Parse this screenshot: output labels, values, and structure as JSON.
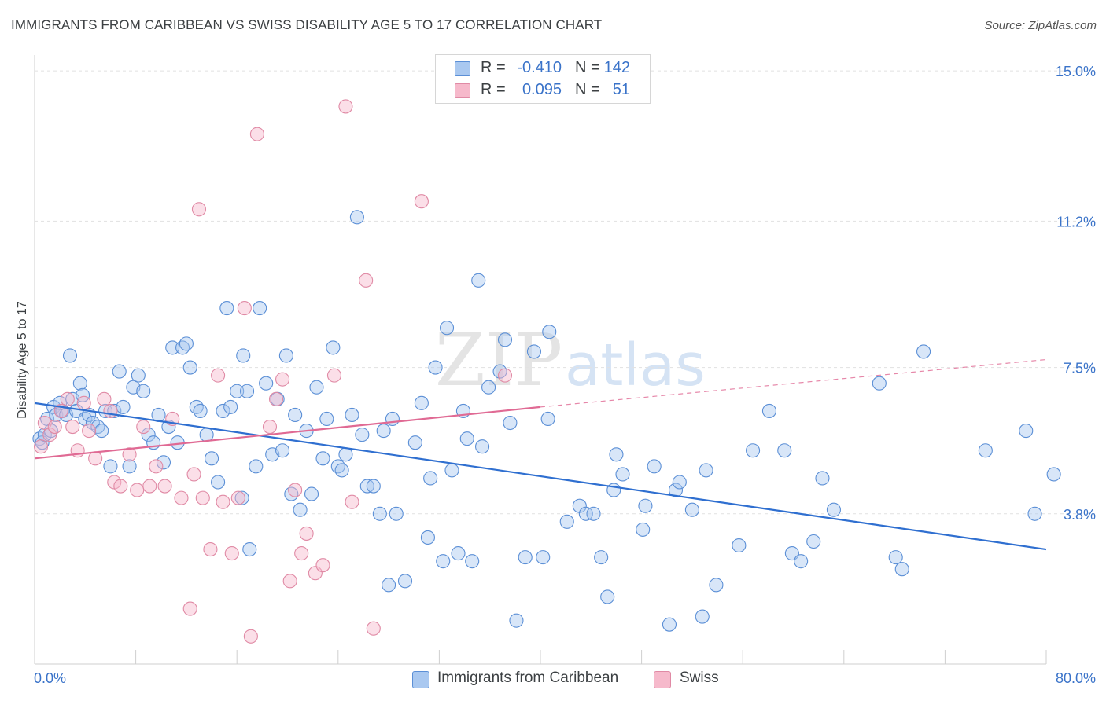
{
  "header": {
    "title": "IMMIGRANTS FROM CARIBBEAN VS SWISS DISABILITY AGE 5 TO 17 CORRELATION CHART",
    "source": "Source: ZipAtlas.com"
  },
  "legend": {
    "rows": [
      {
        "r_label": "R =",
        "r_value": "-0.410",
        "n_label": "N =",
        "n_value": "142",
        "color": "#a9c8f0"
      },
      {
        "r_label": "R =",
        "r_value": "0.095",
        "n_label": "N =",
        "n_value": "51",
        "color": "#f6b9cb"
      }
    ]
  },
  "bottom_legend": [
    "Immigrants from Caribbean",
    "Swiss"
  ],
  "watermark": {
    "zip": "ZIP",
    "atlas": "atlas"
  },
  "chart_data": {
    "type": "scatter",
    "ylabel": "Disability Age 5 to 17",
    "xlim": [
      0,
      80
    ],
    "ylim": [
      0,
      15.4
    ],
    "x_tick_labels": [
      "0.0%",
      "80.0%"
    ],
    "y_ticks": [
      3.8,
      7.5,
      11.2,
      15.0
    ],
    "y_tick_labels": [
      "3.8%",
      "7.5%",
      "11.2%",
      "15.0%"
    ],
    "grid": "horizontal dashed",
    "colors": {
      "blue_fill": "#a9c8f0",
      "blue_stroke": "#5b8fd6",
      "blue_line": "#2f6fd0",
      "pink_fill": "#f6b9cb",
      "pink_stroke": "#e08aa5",
      "pink_line": "#e06a94",
      "tick_label": "#3a73c9"
    },
    "series": [
      {
        "name": "Immigrants from Caribbean",
        "trend": {
          "x0": 0,
          "y0": 6.6,
          "x1": 80,
          "y1": 2.9
        },
        "points": [
          [
            0.4,
            5.7
          ],
          [
            0.6,
            5.6
          ],
          [
            0.8,
            5.8
          ],
          [
            1.0,
            6.2
          ],
          [
            1.3,
            5.9
          ],
          [
            1.5,
            6.5
          ],
          [
            1.7,
            6.3
          ],
          [
            2.0,
            6.6
          ],
          [
            2.2,
            6.4
          ],
          [
            2.5,
            6.3
          ],
          [
            2.8,
            7.8
          ],
          [
            3.0,
            6.7
          ],
          [
            3.3,
            6.4
          ],
          [
            3.6,
            7.1
          ],
          [
            3.8,
            6.8
          ],
          [
            4.0,
            6.2
          ],
          [
            4.3,
            6.3
          ],
          [
            4.6,
            6.1
          ],
          [
            5.0,
            6.0
          ],
          [
            5.3,
            5.9
          ],
          [
            5.6,
            6.4
          ],
          [
            6.0,
            5.0
          ],
          [
            6.3,
            6.4
          ],
          [
            6.7,
            7.4
          ],
          [
            7.0,
            6.5
          ],
          [
            7.5,
            5.0
          ],
          [
            7.8,
            7.0
          ],
          [
            8.2,
            7.3
          ],
          [
            8.6,
            6.9
          ],
          [
            9.0,
            5.8
          ],
          [
            9.4,
            5.6
          ],
          [
            9.8,
            6.3
          ],
          [
            10.2,
            5.1
          ],
          [
            10.6,
            6.0
          ],
          [
            10.9,
            8.0
          ],
          [
            11.3,
            5.6
          ],
          [
            11.7,
            8.0
          ],
          [
            12.0,
            8.1
          ],
          [
            12.3,
            7.5
          ],
          [
            12.8,
            6.5
          ],
          [
            13.1,
            6.4
          ],
          [
            13.6,
            5.8
          ],
          [
            14.0,
            5.2
          ],
          [
            14.5,
            4.6
          ],
          [
            14.9,
            6.4
          ],
          [
            15.2,
            9.0
          ],
          [
            15.5,
            6.5
          ],
          [
            16.0,
            6.9
          ],
          [
            16.5,
            7.8
          ],
          [
            16.8,
            6.9
          ],
          [
            16.4,
            4.2
          ],
          [
            17.0,
            2.9
          ],
          [
            17.5,
            5.0
          ],
          [
            17.8,
            9.0
          ],
          [
            18.3,
            7.1
          ],
          [
            18.8,
            5.3
          ],
          [
            19.2,
            6.7
          ],
          [
            19.6,
            5.4
          ],
          [
            19.9,
            7.8
          ],
          [
            20.3,
            4.3
          ],
          [
            20.6,
            6.3
          ],
          [
            21.0,
            3.9
          ],
          [
            21.5,
            5.9
          ],
          [
            21.9,
            4.3
          ],
          [
            22.3,
            7.0
          ],
          [
            22.8,
            5.2
          ],
          [
            23.1,
            6.2
          ],
          [
            23.6,
            8.0
          ],
          [
            24.0,
            5.0
          ],
          [
            24.3,
            4.9
          ],
          [
            24.6,
            5.3
          ],
          [
            25.1,
            6.3
          ],
          [
            25.5,
            11.3
          ],
          [
            25.9,
            5.8
          ],
          [
            26.3,
            4.5
          ],
          [
            26.8,
            4.5
          ],
          [
            27.3,
            3.8
          ],
          [
            27.6,
            5.9
          ],
          [
            28.0,
            2.0
          ],
          [
            28.3,
            6.2
          ],
          [
            28.6,
            3.8
          ],
          [
            29.3,
            2.1
          ],
          [
            30.1,
            5.6
          ],
          [
            30.6,
            6.6
          ],
          [
            31.1,
            3.2
          ],
          [
            31.3,
            4.7
          ],
          [
            31.7,
            7.5
          ],
          [
            32.3,
            2.6
          ],
          [
            32.6,
            8.5
          ],
          [
            33.0,
            4.9
          ],
          [
            33.5,
            2.8
          ],
          [
            33.9,
            6.4
          ],
          [
            34.2,
            5.7
          ],
          [
            34.6,
            2.6
          ],
          [
            35.1,
            9.7
          ],
          [
            35.4,
            5.5
          ],
          [
            35.9,
            7.0
          ],
          [
            36.8,
            7.4
          ],
          [
            37.2,
            8.2
          ],
          [
            37.6,
            6.1
          ],
          [
            38.1,
            1.1
          ],
          [
            38.8,
            2.7
          ],
          [
            39.5,
            7.9
          ],
          [
            40.2,
            2.7
          ],
          [
            40.6,
            6.2
          ],
          [
            40.7,
            8.4
          ],
          [
            42.1,
            3.6
          ],
          [
            43.1,
            4.0
          ],
          [
            43.6,
            3.8
          ],
          [
            44.2,
            3.8
          ],
          [
            44.8,
            2.7
          ],
          [
            45.3,
            1.7
          ],
          [
            45.8,
            4.4
          ],
          [
            46.0,
            5.3
          ],
          [
            46.5,
            4.8
          ],
          [
            48.1,
            3.4
          ],
          [
            48.3,
            4.0
          ],
          [
            49.0,
            5.0
          ],
          [
            50.2,
            1.0
          ],
          [
            50.7,
            4.4
          ],
          [
            51.0,
            4.6
          ],
          [
            52.0,
            3.9
          ],
          [
            52.8,
            1.2
          ],
          [
            53.1,
            4.9
          ],
          [
            53.9,
            2.0
          ],
          [
            55.7,
            3.0
          ],
          [
            56.8,
            5.4
          ],
          [
            58.1,
            6.4
          ],
          [
            59.3,
            5.4
          ],
          [
            59.9,
            2.8
          ],
          [
            60.6,
            2.6
          ],
          [
            61.6,
            3.1
          ],
          [
            62.3,
            4.7
          ],
          [
            63.2,
            3.9
          ],
          [
            66.8,
            7.1
          ],
          [
            68.1,
            2.7
          ],
          [
            68.6,
            2.4
          ],
          [
            70.3,
            7.9
          ],
          [
            75.2,
            5.4
          ],
          [
            78.4,
            5.9
          ],
          [
            80.6,
            4.8
          ],
          [
            79.1,
            3.8
          ]
        ]
      },
      {
        "name": "Swiss",
        "trend": {
          "x0": 0,
          "y0": 5.2,
          "x1": 40,
          "y1": 6.5
        },
        "trend_ext": {
          "x0": 40,
          "y0": 6.5,
          "x1": 80,
          "y1": 7.7
        },
        "points": [
          [
            0.5,
            5.5
          ],
          [
            0.8,
            6.1
          ],
          [
            1.2,
            5.8
          ],
          [
            1.6,
            6.0
          ],
          [
            2.1,
            6.4
          ],
          [
            2.6,
            6.7
          ],
          [
            3.0,
            6.0
          ],
          [
            3.4,
            5.4
          ],
          [
            3.9,
            6.6
          ],
          [
            4.3,
            5.9
          ],
          [
            4.8,
            5.2
          ],
          [
            5.5,
            6.7
          ],
          [
            6.0,
            6.4
          ],
          [
            6.3,
            4.6
          ],
          [
            6.8,
            4.5
          ],
          [
            7.5,
            5.3
          ],
          [
            8.1,
            4.4
          ],
          [
            8.6,
            6.0
          ],
          [
            9.1,
            4.5
          ],
          [
            9.6,
            5.0
          ],
          [
            10.3,
            4.5
          ],
          [
            10.9,
            6.2
          ],
          [
            11.6,
            4.2
          ],
          [
            12.3,
            1.4
          ],
          [
            12.6,
            4.8
          ],
          [
            13.0,
            11.5
          ],
          [
            13.3,
            4.2
          ],
          [
            13.9,
            2.9
          ],
          [
            14.5,
            7.3
          ],
          [
            14.9,
            4.1
          ],
          [
            15.6,
            2.8
          ],
          [
            16.1,
            4.2
          ],
          [
            16.6,
            9.0
          ],
          [
            17.1,
            0.7
          ],
          [
            17.6,
            13.4
          ],
          [
            18.6,
            6.0
          ],
          [
            19.1,
            6.7
          ],
          [
            19.6,
            7.2
          ],
          [
            20.2,
            2.1
          ],
          [
            20.6,
            4.4
          ],
          [
            21.1,
            2.8
          ],
          [
            21.5,
            3.3
          ],
          [
            22.2,
            2.3
          ],
          [
            22.8,
            2.5
          ],
          [
            23.7,
            7.3
          ],
          [
            24.6,
            14.1
          ],
          [
            25.1,
            4.1
          ],
          [
            26.2,
            9.7
          ],
          [
            26.8,
            0.9
          ],
          [
            30.6,
            11.7
          ],
          [
            37.2,
            7.3
          ]
        ]
      }
    ]
  }
}
